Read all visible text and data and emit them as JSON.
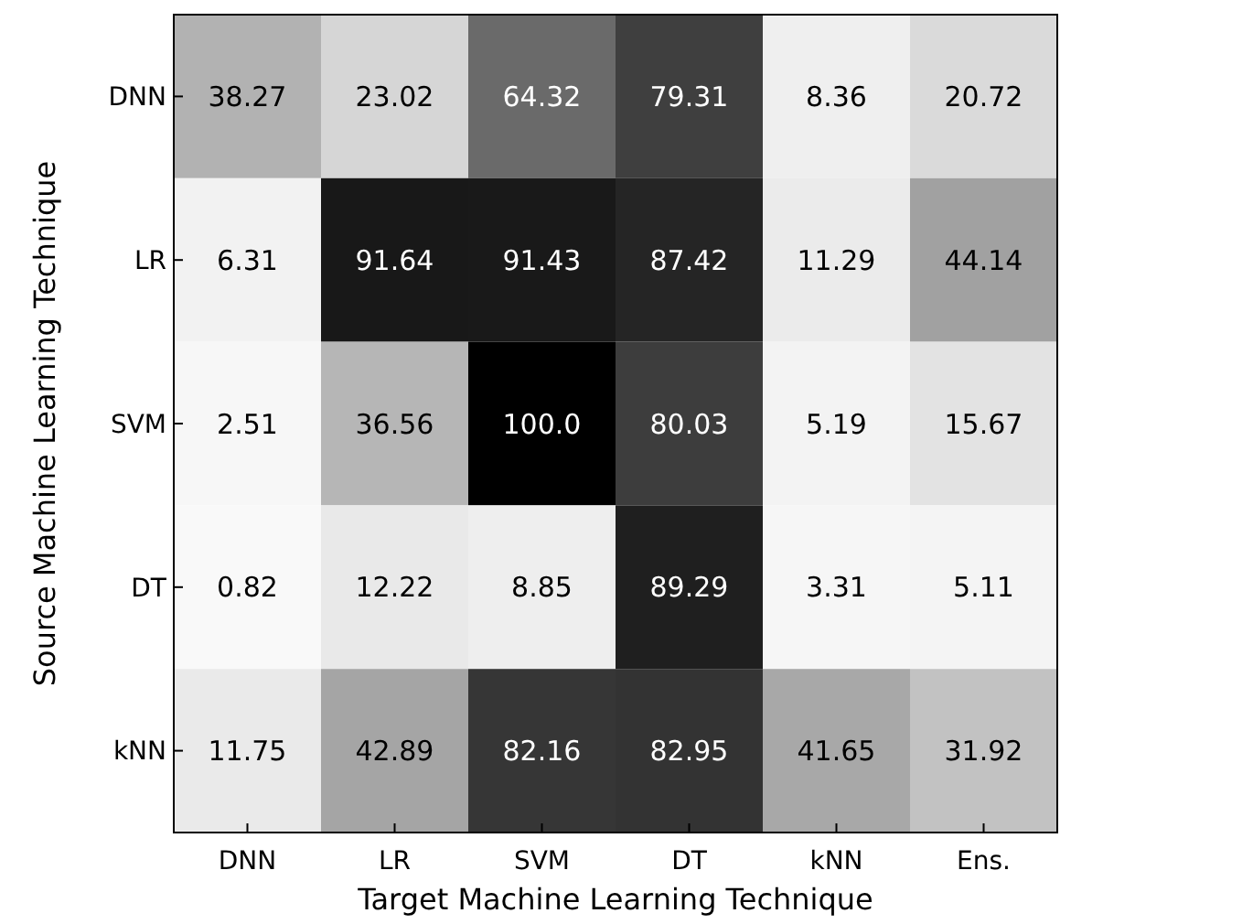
{
  "chart_data": {
    "type": "heatmap",
    "xlabel": "Target Machine Learning Technique",
    "ylabel": "Source Machine Learning Technique",
    "categories": [
      "DNN",
      "LR",
      "SVM",
      "DT",
      "kNN",
      "Ens."
    ],
    "y_categories": [
      "DNN",
      "LR",
      "SVM",
      "DT",
      "kNN"
    ],
    "cells": [
      [
        38.27,
        23.02,
        64.32,
        79.31,
        8.36,
        20.72
      ],
      [
        6.31,
        91.64,
        91.43,
        87.42,
        11.29,
        44.14
      ],
      [
        2.51,
        36.56,
        100.0,
        80.03,
        5.19,
        15.67
      ],
      [
        0.82,
        12.22,
        8.85,
        89.29,
        3.31,
        5.11
      ],
      [
        11.75,
        42.89,
        82.16,
        82.95,
        41.65,
        31.92
      ]
    ],
    "cell_labels": [
      [
        "38.27",
        "23.02",
        "64.32",
        "79.31",
        "8.36",
        "20.72"
      ],
      [
        "6.31",
        "91.64",
        "91.43",
        "87.42",
        "11.29",
        "44.14"
      ],
      [
        "2.51",
        "36.56",
        "100.0",
        "80.03",
        "5.19",
        "15.67"
      ],
      [
        "0.82",
        "12.22",
        "8.85",
        "89.29",
        "3.31",
        "5.11"
      ],
      [
        "11.75",
        "42.89",
        "82.16",
        "82.95",
        "41.65",
        "31.92"
      ]
    ],
    "data_labels": true
  }
}
